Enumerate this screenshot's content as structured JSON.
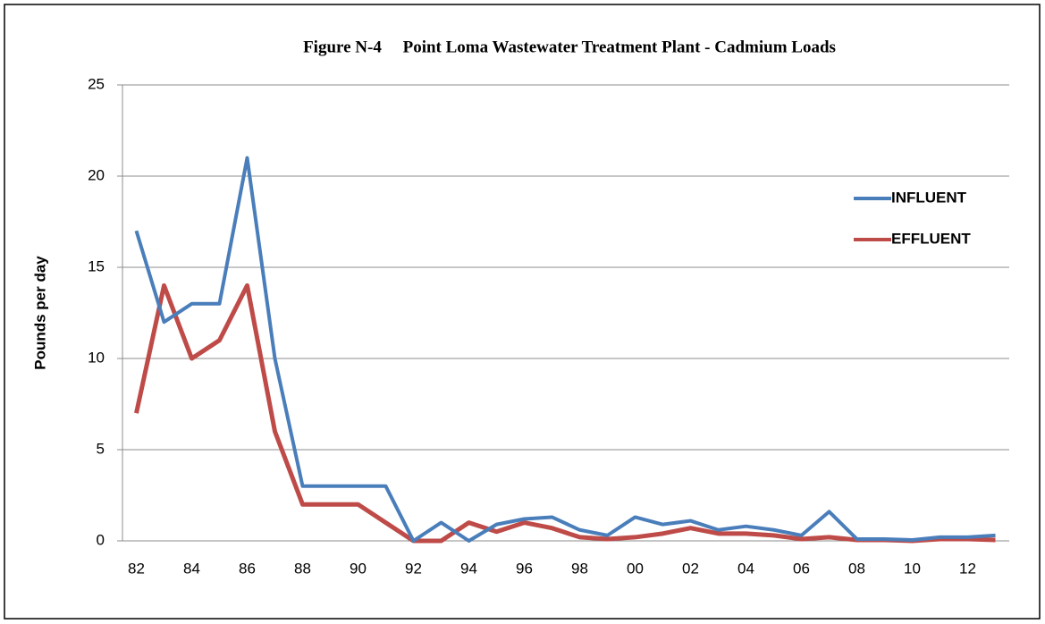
{
  "chart_data": {
    "type": "line",
    "title": "Figure N-4     Point Loma Wastewater Treatment Plant - Cadmium Loads",
    "y_label": "Pounds per day",
    "categories": [
      "82",
      null,
      "84",
      null,
      "86",
      null,
      "88",
      null,
      "90",
      null,
      "92",
      null,
      "94",
      null,
      "96",
      null,
      "98",
      null,
      "00",
      null,
      "02",
      null,
      "04",
      null,
      "06",
      null,
      "08",
      null,
      "10",
      null,
      "12",
      null
    ],
    "series": [
      {
        "name": "INFLUENT",
        "color": "#4a7ebb",
        "values": [
          17,
          12,
          13,
          13,
          21,
          10,
          3,
          3,
          3,
          3,
          0,
          1,
          0,
          0.9,
          1.2,
          1.3,
          0.6,
          0.3,
          1.3,
          0.9,
          1.1,
          0.6,
          0.8,
          0.6,
          0.3,
          1.6,
          0.1,
          0.1,
          0.05,
          0.2,
          0.2,
          0.3
        ]
      },
      {
        "name": "EFFLUENT",
        "color": "#be4b48",
        "values": [
          7,
          14,
          10,
          11,
          14,
          6,
          2,
          2,
          2,
          1,
          0,
          0,
          1,
          0.5,
          1,
          0.7,
          0.2,
          0.1,
          0.2,
          0.4,
          0.7,
          0.4,
          0.4,
          0.3,
          0.1,
          0.2,
          0.05,
          0.05,
          0,
          0.1,
          0.1,
          0.05
        ]
      }
    ],
    "ylim": [
      0,
      25
    ],
    "yticks": [
      0,
      5,
      10,
      15,
      20,
      25
    ],
    "grid": true,
    "legend": "right"
  }
}
